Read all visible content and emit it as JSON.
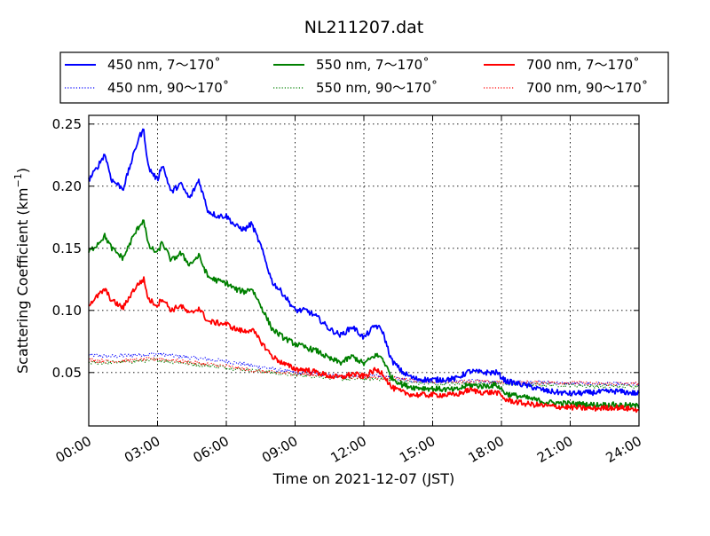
{
  "chart_data": {
    "type": "line",
    "title": "NL211207.dat",
    "xlabel": "Time on 2021-12-07 (JST)",
    "ylabel_main": "Scattering Coefficient (km",
    "ylabel_sup": "−1",
    "ylabel_end": ")",
    "xlim": [
      0,
      24
    ],
    "ylim": [
      0.007,
      0.257
    ],
    "x_ticks": [
      0,
      3,
      6,
      9,
      12,
      15,
      18,
      21,
      24
    ],
    "x_tick_labels": [
      "00:00",
      "03:00",
      "06:00",
      "09:00",
      "12:00",
      "15:00",
      "18:00",
      "21:00",
      "24:00"
    ],
    "y_ticks": [
      0.05,
      0.1,
      0.15,
      0.2,
      0.25
    ],
    "y_tick_labels": [
      "0.05",
      "0.10",
      "0.15",
      "0.20",
      "0.25"
    ],
    "grid": true,
    "legend_position": "top (above plot), 3 columns",
    "series": [
      {
        "name": "450 nm, 7～170˚",
        "color": "#0000ff",
        "style": "solid",
        "x": [
          0,
          0.3,
          0.7,
          1.0,
          1.5,
          1.9,
          2.2,
          2.4,
          2.6,
          3.0,
          3.2,
          3.6,
          4.0,
          4.4,
          4.8,
          5.2,
          5.6,
          6.0,
          6.4,
          6.8,
          7.1,
          7.5,
          8.0,
          8.5,
          9.0,
          9.5,
          10.0,
          10.5,
          11.0,
          11.5,
          12.0,
          12.5,
          12.8,
          13.2,
          13.7,
          14.2,
          15.0,
          16.0,
          16.6,
          17.2,
          17.8,
          18.2,
          19.0,
          20.0,
          21.0,
          22.0,
          23.0,
          24.0
        ],
        "y": [
          0.205,
          0.213,
          0.226,
          0.205,
          0.198,
          0.222,
          0.24,
          0.245,
          0.215,
          0.205,
          0.218,
          0.195,
          0.202,
          0.19,
          0.205,
          0.18,
          0.176,
          0.176,
          0.168,
          0.165,
          0.17,
          0.152,
          0.123,
          0.113,
          0.1,
          0.1,
          0.094,
          0.085,
          0.08,
          0.087,
          0.078,
          0.088,
          0.084,
          0.06,
          0.05,
          0.045,
          0.044,
          0.045,
          0.051,
          0.05,
          0.05,
          0.043,
          0.04,
          0.035,
          0.033,
          0.034,
          0.035,
          0.033
        ]
      },
      {
        "name": "550 nm, 7～170˚",
        "color": "#008000",
        "style": "solid",
        "x": [
          0,
          0.3,
          0.7,
          1.0,
          1.5,
          1.9,
          2.2,
          2.4,
          2.6,
          3.0,
          3.2,
          3.6,
          4.0,
          4.4,
          4.8,
          5.2,
          5.6,
          6.0,
          6.4,
          6.8,
          7.1,
          7.5,
          8.0,
          8.5,
          9.0,
          9.5,
          10.0,
          10.5,
          11.0,
          11.5,
          12.0,
          12.5,
          12.8,
          13.2,
          13.7,
          14.2,
          15.0,
          16.0,
          16.6,
          17.2,
          17.8,
          18.2,
          19.0,
          20.0,
          21.0,
          22.0,
          23.0,
          24.0
        ],
        "y": [
          0.147,
          0.152,
          0.16,
          0.15,
          0.142,
          0.158,
          0.168,
          0.173,
          0.152,
          0.146,
          0.155,
          0.14,
          0.146,
          0.137,
          0.144,
          0.127,
          0.124,
          0.122,
          0.117,
          0.115,
          0.118,
          0.104,
          0.085,
          0.078,
          0.073,
          0.07,
          0.067,
          0.061,
          0.058,
          0.063,
          0.057,
          0.064,
          0.062,
          0.046,
          0.04,
          0.038,
          0.037,
          0.036,
          0.04,
          0.039,
          0.04,
          0.033,
          0.03,
          0.026,
          0.025,
          0.024,
          0.024,
          0.023
        ]
      },
      {
        "name": "700 nm, 7～170˚",
        "color": "#ff0000",
        "style": "solid",
        "x": [
          0,
          0.3,
          0.7,
          1.0,
          1.5,
          1.9,
          2.2,
          2.4,
          2.6,
          3.0,
          3.2,
          3.6,
          4.0,
          4.4,
          4.8,
          5.2,
          5.6,
          6.0,
          6.4,
          6.8,
          7.1,
          7.5,
          8.0,
          8.5,
          9.0,
          9.5,
          10.0,
          10.5,
          11.0,
          11.5,
          12.0,
          12.5,
          12.8,
          13.2,
          13.7,
          14.2,
          15.0,
          16.0,
          16.6,
          17.2,
          17.8,
          18.2,
          19.0,
          20.0,
          21.0,
          22.0,
          23.0,
          24.0
        ],
        "y": [
          0.105,
          0.11,
          0.117,
          0.108,
          0.102,
          0.115,
          0.122,
          0.125,
          0.109,
          0.104,
          0.11,
          0.1,
          0.104,
          0.097,
          0.102,
          0.091,
          0.09,
          0.089,
          0.085,
          0.083,
          0.085,
          0.075,
          0.063,
          0.057,
          0.053,
          0.052,
          0.05,
          0.047,
          0.046,
          0.049,
          0.047,
          0.052,
          0.05,
          0.038,
          0.034,
          0.032,
          0.032,
          0.032,
          0.036,
          0.034,
          0.034,
          0.028,
          0.025,
          0.023,
          0.022,
          0.021,
          0.022,
          0.02
        ]
      },
      {
        "name": "450 nm, 90～170˚",
        "color": "#0000ff",
        "style": "dotted",
        "x": [
          0,
          1,
          2,
          3,
          4,
          5,
          6,
          7,
          8,
          9,
          10,
          11,
          12,
          12.8,
          13.5,
          14,
          15,
          16,
          17,
          18,
          19,
          20,
          21,
          22,
          23,
          24
        ],
        "y": [
          0.064,
          0.063,
          0.064,
          0.065,
          0.063,
          0.061,
          0.059,
          0.056,
          0.053,
          0.05,
          0.049,
          0.047,
          0.047,
          0.047,
          0.045,
          0.044,
          0.043,
          0.043,
          0.043,
          0.042,
          0.042,
          0.042,
          0.041,
          0.041,
          0.041,
          0.04
        ]
      },
      {
        "name": "550 nm, 90～170˚",
        "color": "#008000",
        "style": "dotted",
        "x": [
          0,
          1,
          2,
          3,
          4,
          5,
          6,
          7,
          8,
          9,
          10,
          11,
          12,
          12.8,
          13.5,
          14,
          15,
          16,
          17,
          18,
          19,
          20,
          21,
          22,
          23,
          24
        ],
        "y": [
          0.058,
          0.058,
          0.059,
          0.06,
          0.058,
          0.056,
          0.054,
          0.052,
          0.05,
          0.048,
          0.047,
          0.045,
          0.045,
          0.045,
          0.043,
          0.042,
          0.041,
          0.041,
          0.041,
          0.041,
          0.04,
          0.04,
          0.04,
          0.039,
          0.039,
          0.039
        ]
      },
      {
        "name": "700 nm, 90～170˚",
        "color": "#ff0000",
        "style": "dotted",
        "x": [
          0,
          1,
          2,
          3,
          4,
          5,
          6,
          7,
          8,
          9,
          10,
          11,
          12,
          12.8,
          13.5,
          14,
          15,
          16,
          17,
          18,
          19,
          20,
          21,
          22,
          23,
          24
        ],
        "y": [
          0.06,
          0.059,
          0.06,
          0.061,
          0.059,
          0.057,
          0.055,
          0.052,
          0.05,
          0.049,
          0.048,
          0.047,
          0.046,
          0.046,
          0.045,
          0.044,
          0.043,
          0.043,
          0.043,
          0.042,
          0.042,
          0.042,
          0.042,
          0.041,
          0.041,
          0.041
        ]
      }
    ]
  }
}
